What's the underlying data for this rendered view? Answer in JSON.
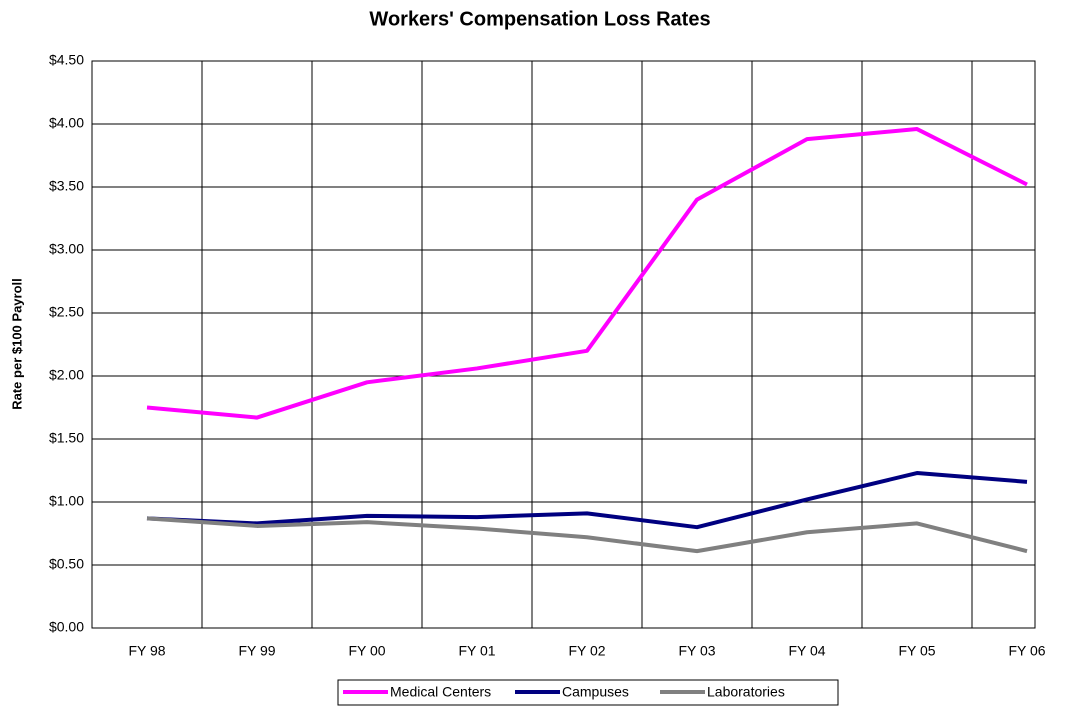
{
  "chart_data": {
    "type": "line",
    "title": "Workers' Compensation Loss Rates",
    "y_label": "Rate per $100 Payroll",
    "categories": [
      "FY 98",
      "FY 99",
      "FY 00",
      "FY 01",
      "FY 02",
      "FY 03",
      "FY 04",
      "FY 05",
      "FY 06"
    ],
    "series": [
      {
        "name": "Medical Centers",
        "color": "#ff00ff",
        "values": [
          1.75,
          1.67,
          1.95,
          2.06,
          2.2,
          3.4,
          3.88,
          3.96,
          3.52
        ]
      },
      {
        "name": "Campuses",
        "color": "#000080",
        "values": [
          0.87,
          0.83,
          0.89,
          0.88,
          0.91,
          0.8,
          1.02,
          1.23,
          1.16
        ]
      },
      {
        "name": "Laboratories",
        "color": "#808080",
        "values": [
          0.87,
          0.81,
          0.84,
          0.79,
          0.72,
          0.61,
          0.76,
          0.83,
          0.61
        ]
      }
    ],
    "ylim": [
      0,
      4.5
    ],
    "yticks": [
      {
        "value": 0,
        "label": "$0.00"
      },
      {
        "value": 0.5,
        "label": "$0.50"
      },
      {
        "value": 1,
        "label": "$1.00"
      },
      {
        "value": 1.5,
        "label": "$1.50"
      },
      {
        "value": 2,
        "label": "$2.00"
      },
      {
        "value": 2.5,
        "label": "$2.50"
      },
      {
        "value": 3,
        "label": "$3.00"
      },
      {
        "value": 3.5,
        "label": "$3.50"
      },
      {
        "value": 4,
        "label": "$4.00"
      },
      {
        "value": 4.5,
        "label": "$4.50"
      }
    ],
    "grid": true,
    "legend": "bottom"
  }
}
